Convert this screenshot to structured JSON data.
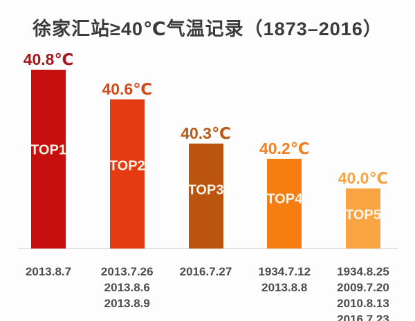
{
  "title": "徐家汇站≥40℃气温记录（1873–2016）",
  "palette": {
    "title_color": "#3b3b3b",
    "date_text_color": "#4c4c4c",
    "rank_text_color": "#fdf4e8",
    "axis_line_color": "#e3e3e3",
    "background": "#fdfdfd"
  },
  "chart_data": {
    "type": "bar",
    "title": "徐家汇站≥40℃气温记录（1873–2016）",
    "categories": [
      "TOP1",
      "TOP2",
      "TOP3",
      "TOP4",
      "TOP5"
    ],
    "values": [
      40.8,
      40.6,
      40.3,
      40.2,
      40.0
    ],
    "unit": "℃",
    "ylim": [
      39.6,
      40.9
    ],
    "grid": false,
    "legend": false,
    "xlabel": "",
    "ylabel": "",
    "bars": [
      {
        "rank": "TOP1",
        "temp": 40.8,
        "temp_label": "40.8℃",
        "color": "#c5100f",
        "label_color": "#a8161d",
        "dates": [
          "2013.8.7"
        ]
      },
      {
        "rank": "TOP2",
        "temp": 40.6,
        "temp_label": "40.6℃",
        "color": "#e53b13",
        "label_color": "#d14a1d",
        "dates": [
          "2013.7.26",
          "2013.8.6",
          "2013.8.9"
        ]
      },
      {
        "rank": "TOP3",
        "temp": 40.3,
        "temp_label": "40.3℃",
        "color": "#ba540f",
        "label_color": "#b95a14",
        "dates": [
          "2016.7.27"
        ]
      },
      {
        "rank": "TOP4",
        "temp": 40.2,
        "temp_label": "40.2℃",
        "color": "#f87d10",
        "label_color": "#f28022",
        "dates": [
          "1934.7.12",
          "2013.8.8"
        ]
      },
      {
        "rank": "TOP5",
        "temp": 40.0,
        "temp_label": "40.0℃",
        "color": "#f9a442",
        "label_color": "#f9a442",
        "dates": [
          "1934.8.25",
          "2009.7.20",
          "2010.8.13",
          "2016.7.23"
        ]
      }
    ]
  }
}
